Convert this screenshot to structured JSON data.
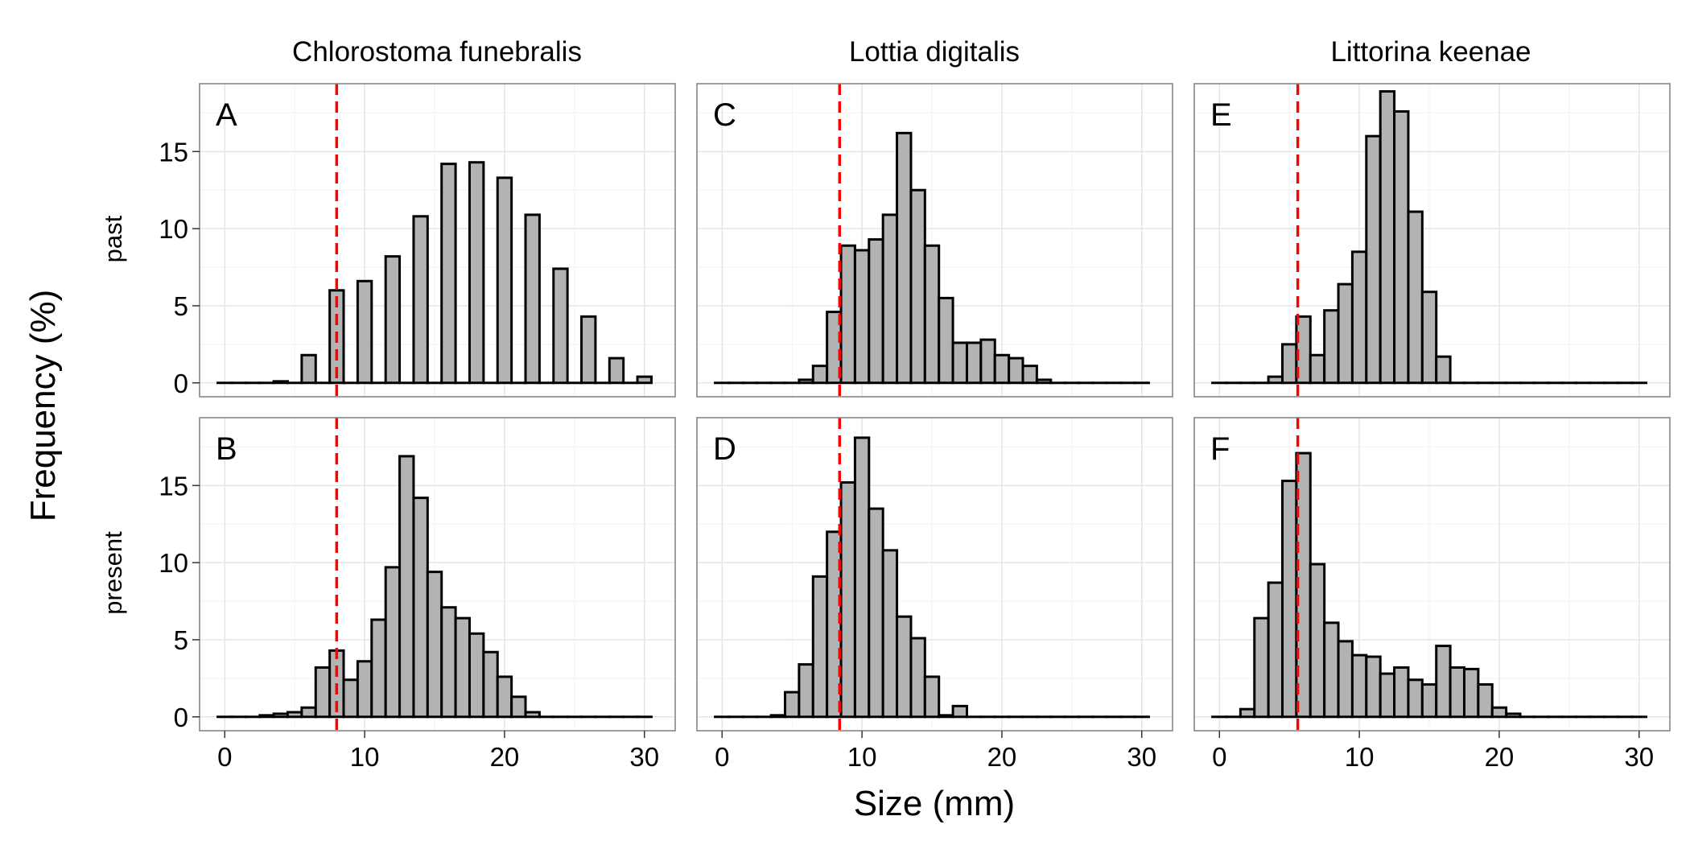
{
  "chart_data": {
    "type": "bar",
    "xlabel": "Size (mm)",
    "ylabel": "Frequency (%)",
    "xlim": [
      -1.8,
      32.2
    ],
    "ylim": [
      -0.9,
      19.4
    ],
    "xticks": [
      0,
      10,
      20,
      30
    ],
    "yticks": [
      0,
      5,
      10,
      15
    ],
    "x_minor_gridlines": [
      5,
      15,
      25
    ],
    "y_minor_gridlines": [
      2.5,
      7.5,
      12.5,
      17.5
    ],
    "grid": true,
    "bin_width": 1,
    "bin_centers": [
      0,
      1,
      2,
      3,
      4,
      5,
      6,
      7,
      8,
      9,
      10,
      11,
      12,
      13,
      14,
      15,
      16,
      17,
      18,
      19,
      20,
      21,
      22,
      23,
      24,
      25,
      26,
      27,
      28,
      29,
      30
    ],
    "bar_fill": "#b3b3b3",
    "bar_stroke": "#000000",
    "reference_line_color": "#ff0000",
    "columns": [
      "Chlorostoma funebralis",
      "Lottia digitalis",
      "Littorina keenae"
    ],
    "rows": [
      "past",
      "present"
    ],
    "panels": [
      {
        "label": "A",
        "column": 0,
        "row": 0,
        "reference_x": 8.0,
        "values": [
          0,
          0,
          0,
          0,
          0.1,
          0,
          1.8,
          0,
          6.0,
          0,
          6.6,
          0,
          8.2,
          0,
          10.8,
          0,
          14.2,
          0,
          14.3,
          0,
          13.3,
          0,
          10.9,
          0,
          7.4,
          0,
          4.3,
          0,
          1.6,
          0,
          0.4
        ]
      },
      {
        "label": "C",
        "column": 1,
        "row": 0,
        "reference_x": 8.4,
        "values": [
          0,
          0,
          0,
          0,
          0,
          0,
          0.2,
          1.1,
          4.6,
          8.9,
          8.6,
          9.3,
          10.9,
          16.2,
          12.5,
          8.9,
          5.5,
          2.6,
          2.6,
          2.8,
          1.8,
          1.6,
          1.1,
          0.2,
          0,
          0,
          0,
          0,
          0,
          0,
          0
        ]
      },
      {
        "label": "E",
        "column": 2,
        "row": 0,
        "reference_x": 5.6,
        "values": [
          0,
          0,
          0,
          0,
          0.4,
          2.5,
          4.3,
          1.8,
          4.7,
          6.4,
          8.5,
          16.0,
          18.9,
          17.6,
          11.1,
          5.9,
          1.7,
          0,
          0,
          0,
          0,
          0,
          0,
          0,
          0,
          0,
          0,
          0,
          0,
          0,
          0
        ]
      },
      {
        "label": "B",
        "column": 0,
        "row": 1,
        "reference_x": 8.0,
        "values": [
          0,
          0,
          0,
          0.1,
          0.2,
          0.3,
          0.6,
          3.2,
          4.3,
          2.4,
          3.6,
          6.3,
          9.7,
          16.9,
          14.2,
          9.4,
          7.1,
          6.4,
          5.4,
          4.2,
          2.6,
          1.3,
          0.3,
          0,
          0,
          0,
          0,
          0,
          0,
          0,
          0
        ]
      },
      {
        "label": "D",
        "column": 1,
        "row": 1,
        "reference_x": 8.4,
        "values": [
          0,
          0,
          0,
          0,
          0.1,
          1.6,
          3.4,
          9.1,
          12.0,
          15.2,
          18.1,
          13.5,
          10.8,
          6.5,
          5.1,
          2.6,
          0.1,
          0.7,
          0,
          0,
          0,
          0,
          0,
          0,
          0,
          0,
          0,
          0,
          0,
          0,
          0
        ]
      },
      {
        "label": "F",
        "column": 2,
        "row": 1,
        "reference_x": 5.6,
        "values": [
          0,
          0,
          0.5,
          6.4,
          8.7,
          15.3,
          17.1,
          9.9,
          6.1,
          4.9,
          4.0,
          3.9,
          2.8,
          3.2,
          2.4,
          2.1,
          4.6,
          3.2,
          3.1,
          2.1,
          0.6,
          0.2,
          0,
          0,
          0,
          0,
          0,
          0,
          0,
          0,
          0
        ]
      }
    ]
  }
}
